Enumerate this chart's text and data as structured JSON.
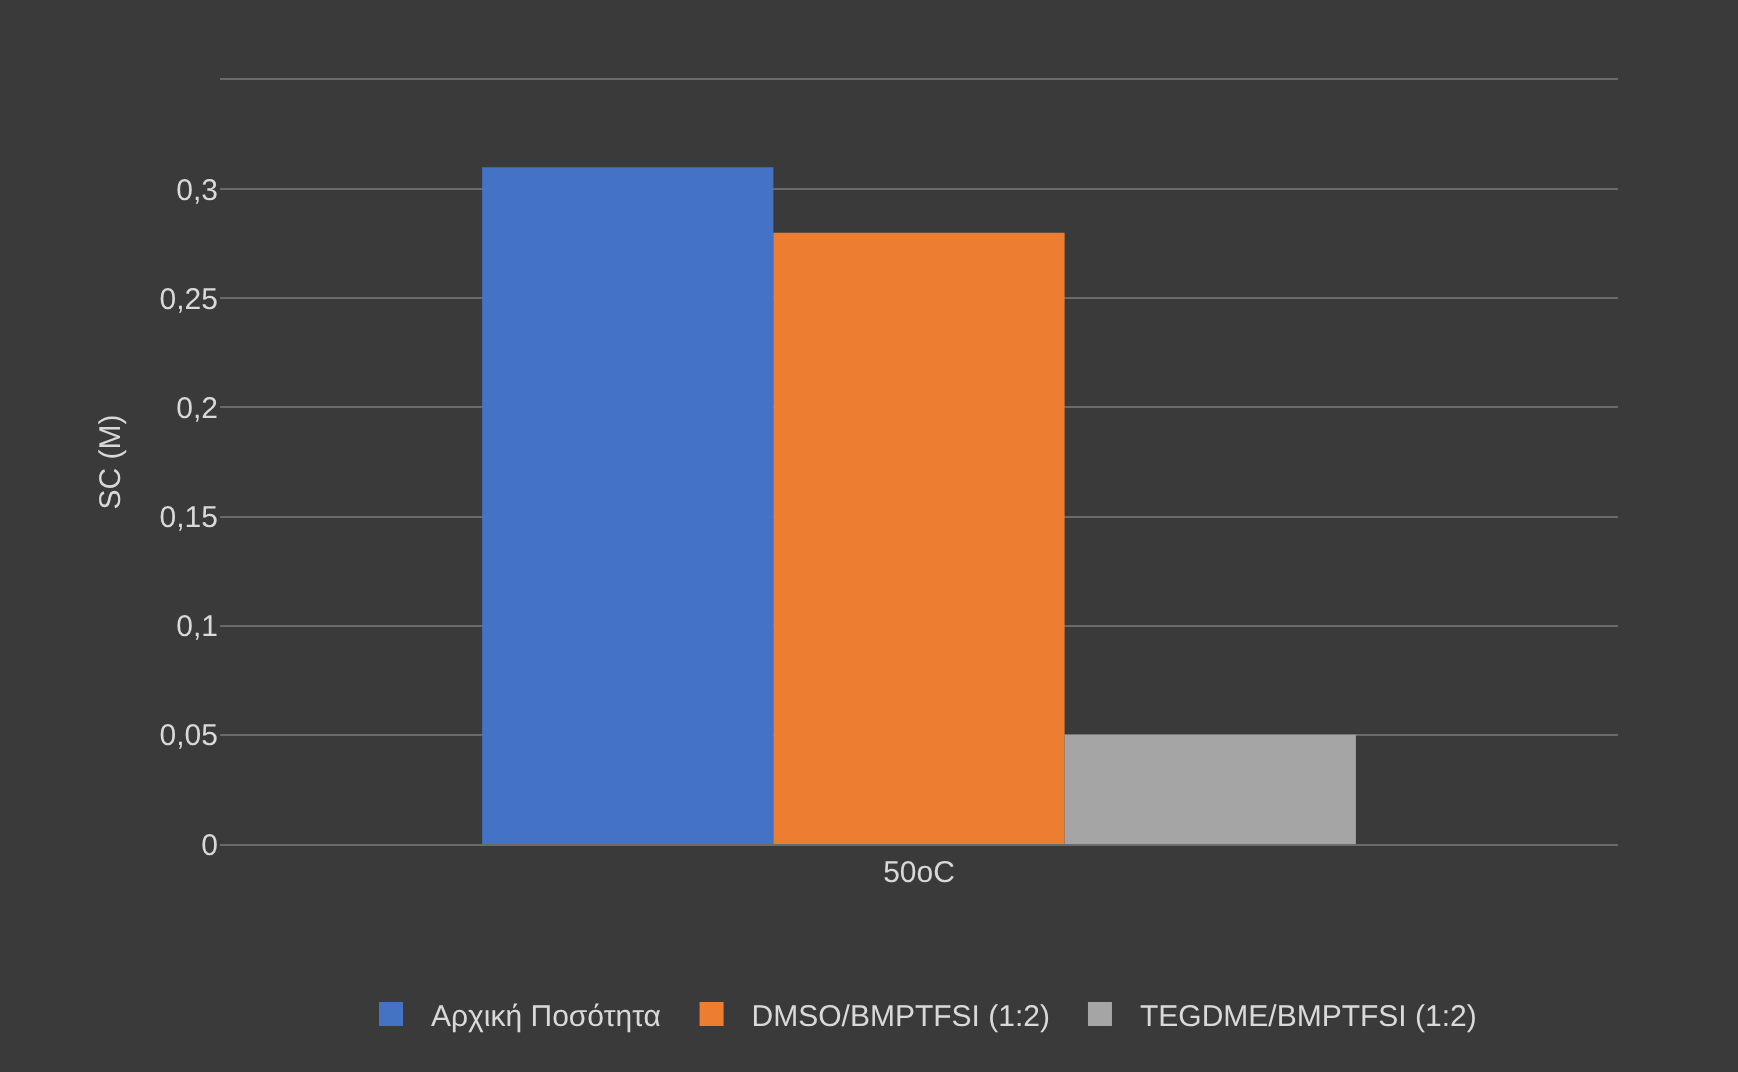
{
  "chart_data": {
    "type": "bar",
    "ylabel": "SC (M)",
    "categories": [
      "50oC"
    ],
    "series": [
      {
        "name": "Αρχική Ποσότητα",
        "color": "#4472c4",
        "values": [
          0.31
        ]
      },
      {
        "name": "DMSO/BMPTFSI (1:2)",
        "color": "#ed7d31",
        "values": [
          0.28
        ]
      },
      {
        "name": "TEGDME/BMPTFSI (1:2)",
        "color": "#a5a5a5",
        "values": [
          0.05
        ]
      }
    ],
    "ylim": [
      0,
      0.35
    ],
    "yticks": [
      0,
      {
        "value": 0.05,
        "label": "0,05"
      },
      {
        "value": 0.1,
        "label": "0,1"
      },
      {
        "value": 0.15,
        "label": "0,15"
      },
      {
        "value": 0.2,
        "label": "0,2"
      },
      {
        "value": 0.25,
        "label": "0,25"
      },
      {
        "value": 0.3,
        "label": "0,3"
      },
      {
        "value": 0.35,
        "label": null
      }
    ],
    "grid": "y",
    "legend": "bottom"
  }
}
